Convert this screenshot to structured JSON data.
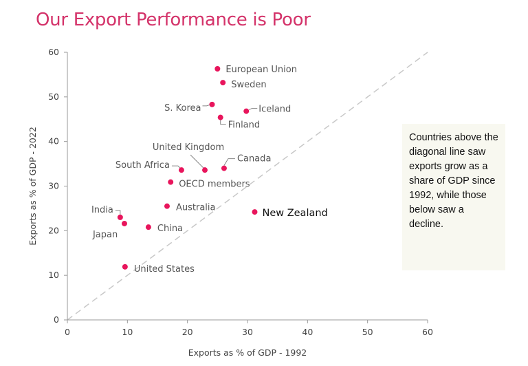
{
  "chart_data": {
    "type": "scatter",
    "title": "Our Export Performance is Poor",
    "xlabel": "Exports as % of GDP - 1992",
    "ylabel": "Exports as % of GDP - 2022",
    "xlim": [
      0,
      60
    ],
    "ylim": [
      0,
      60
    ],
    "xticks": [
      0,
      10,
      20,
      30,
      40,
      50,
      60
    ],
    "yticks": [
      0,
      10,
      20,
      30,
      40,
      50,
      60
    ],
    "grid": false,
    "reference_line": "y = x (dashed diagonal)",
    "colors": {
      "point": "#e8155c",
      "title": "#d4336a",
      "diagonal": "#c8c8c8",
      "note_bg": "#f8f8f0"
    },
    "points": [
      {
        "label": "European Union",
        "x": 25.0,
        "y": 56.3
      },
      {
        "label": "Sweden",
        "x": 25.9,
        "y": 53.2
      },
      {
        "label": "S. Korea",
        "x": 24.1,
        "y": 48.3
      },
      {
        "label": "Iceland",
        "x": 29.8,
        "y": 46.8
      },
      {
        "label": "Finland",
        "x": 25.5,
        "y": 45.4
      },
      {
        "label": "United Kingdom",
        "x": 22.9,
        "y": 33.6
      },
      {
        "label": "South Africa",
        "x": 19.0,
        "y": 33.6
      },
      {
        "label": "Canada",
        "x": 26.1,
        "y": 34.0
      },
      {
        "label": "OECD members",
        "x": 17.2,
        "y": 30.9
      },
      {
        "label": "Australia",
        "x": 16.6,
        "y": 25.5
      },
      {
        "label": "New Zealand",
        "x": 31.2,
        "y": 24.2,
        "highlight": true
      },
      {
        "label": "India",
        "x": 8.8,
        "y": 23.0
      },
      {
        "label": "Japan",
        "x": 9.5,
        "y": 21.6
      },
      {
        "label": "China",
        "x": 13.5,
        "y": 20.8
      },
      {
        "label": "United States",
        "x": 9.6,
        "y": 11.9
      }
    ],
    "annotation": "Countries above the diagonal line saw exports grow as a share of GDP since 1992, while those below saw a decline."
  }
}
